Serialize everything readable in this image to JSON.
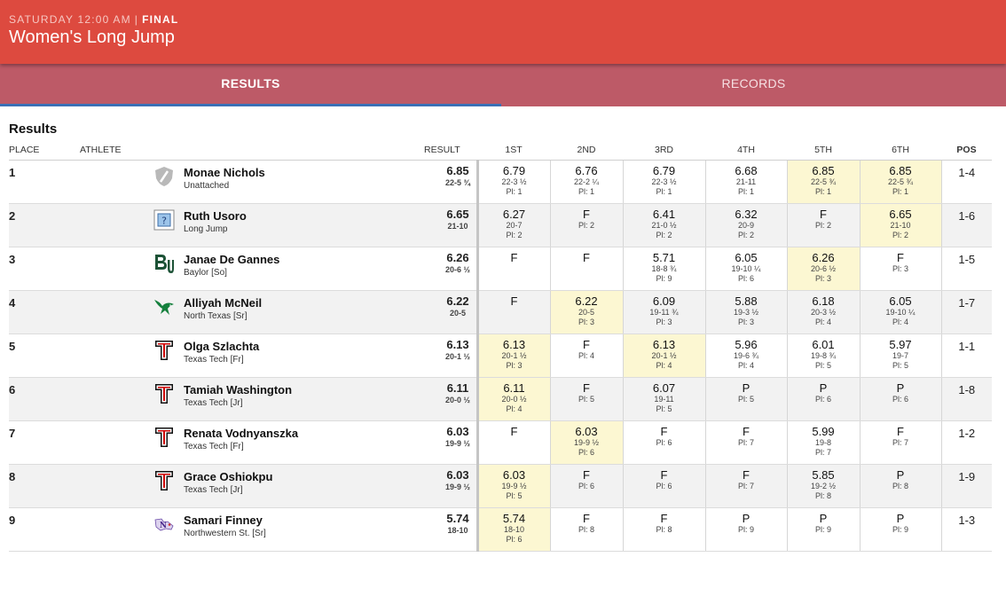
{
  "header": {
    "day_time": "SATURDAY 12:00 AM",
    "separator": "|",
    "status": "FINAL",
    "title": "Women's Long Jump"
  },
  "tabs": [
    {
      "label": "RESULTS",
      "active": true
    },
    {
      "label": "RECORDS",
      "active": false
    }
  ],
  "section_title": "Results",
  "columns": {
    "place": "PLACE",
    "athlete": "ATHLETE",
    "result": "RESULT",
    "attempts": [
      "1ST",
      "2ND",
      "3RD",
      "4TH",
      "5TH",
      "6TH"
    ],
    "pos": "POS"
  },
  "colors": {
    "header_bg": "#dd4a3f",
    "tabs_bg": "#bd5a67",
    "active_indicator": "#3a6fb5",
    "best_mark_highlight": "#fcf7d2"
  },
  "rows": [
    {
      "place": "1",
      "name": "Monae Nichols",
      "team": "Unattached",
      "logo": "unattached-shield-icon",
      "result": "6.85",
      "result_imperial": "22-5 ¾",
      "pos": "1-4",
      "attempts": [
        {
          "mark": "6.79",
          "imperial": "22-3 ½",
          "pl": "Pl: 1",
          "best": false
        },
        {
          "mark": "6.76",
          "imperial": "22-2 ¼",
          "pl": "Pl: 1",
          "best": false
        },
        {
          "mark": "6.79",
          "imperial": "22-3 ½",
          "pl": "Pl: 1",
          "best": false
        },
        {
          "mark": "6.68",
          "imperial": "21-11",
          "pl": "Pl: 1",
          "best": false
        },
        {
          "mark": "6.85",
          "imperial": "22-5 ¾",
          "pl": "Pl: 1",
          "best": true
        },
        {
          "mark": "6.85",
          "imperial": "22-5 ¾",
          "pl": "Pl: 1",
          "best": true
        }
      ]
    },
    {
      "place": "2",
      "name": "Ruth Usoro",
      "team": "Long Jump",
      "logo": "unknown-team-icon",
      "result": "6.65",
      "result_imperial": "21-10",
      "pos": "1-6",
      "attempts": [
        {
          "mark": "6.27",
          "imperial": "20-7",
          "pl": "Pl: 2",
          "best": false
        },
        {
          "mark": "F",
          "imperial": "",
          "pl": "Pl: 2",
          "best": false
        },
        {
          "mark": "6.41",
          "imperial": "21-0 ½",
          "pl": "Pl: 2",
          "best": false
        },
        {
          "mark": "6.32",
          "imperial": "20-9",
          "pl": "Pl: 2",
          "best": false
        },
        {
          "mark": "F",
          "imperial": "",
          "pl": "Pl: 2",
          "best": false
        },
        {
          "mark": "6.65",
          "imperial": "21-10",
          "pl": "Pl: 2",
          "best": true
        }
      ]
    },
    {
      "place": "3",
      "name": "Janae De Gannes",
      "team": "Baylor [So]",
      "logo": "baylor-bu-icon",
      "result": "6.26",
      "result_imperial": "20-6 ½",
      "pos": "1-5",
      "attempts": [
        {
          "mark": "F",
          "imperial": "",
          "pl": "",
          "best": false
        },
        {
          "mark": "F",
          "imperial": "",
          "pl": "",
          "best": false
        },
        {
          "mark": "5.71",
          "imperial": "18-8 ¾",
          "pl": "Pl: 9",
          "best": false
        },
        {
          "mark": "6.05",
          "imperial": "19-10 ¼",
          "pl": "Pl: 6",
          "best": false
        },
        {
          "mark": "6.26",
          "imperial": "20-6 ½",
          "pl": "Pl: 3",
          "best": true
        },
        {
          "mark": "F",
          "imperial": "",
          "pl": "Pl: 3",
          "best": false
        }
      ]
    },
    {
      "place": "4",
      "name": "Alliyah McNeil",
      "team": "North Texas [Sr]",
      "logo": "north-texas-eagle-icon",
      "result": "6.22",
      "result_imperial": "20-5",
      "pos": "1-7",
      "attempts": [
        {
          "mark": "F",
          "imperial": "",
          "pl": "",
          "best": false
        },
        {
          "mark": "6.22",
          "imperial": "20-5",
          "pl": "Pl: 3",
          "best": true
        },
        {
          "mark": "6.09",
          "imperial": "19-11 ¾",
          "pl": "Pl: 3",
          "best": false
        },
        {
          "mark": "5.88",
          "imperial": "19-3 ½",
          "pl": "Pl: 3",
          "best": false
        },
        {
          "mark": "6.18",
          "imperial": "20-3 ½",
          "pl": "Pl: 4",
          "best": false
        },
        {
          "mark": "6.05",
          "imperial": "19-10 ¼",
          "pl": "Pl: 4",
          "best": false
        }
      ]
    },
    {
      "place": "5",
      "name": "Olga Szlachta",
      "team": "Texas Tech [Fr]",
      "logo": "texas-tech-double-t-icon",
      "result": "6.13",
      "result_imperial": "20-1 ½",
      "pos": "1-1",
      "attempts": [
        {
          "mark": "6.13",
          "imperial": "20-1 ½",
          "pl": "Pl: 3",
          "best": true
        },
        {
          "mark": "F",
          "imperial": "",
          "pl": "Pl: 4",
          "best": false
        },
        {
          "mark": "6.13",
          "imperial": "20-1 ½",
          "pl": "Pl: 4",
          "best": true
        },
        {
          "mark": "5.96",
          "imperial": "19-6 ¾",
          "pl": "Pl: 4",
          "best": false
        },
        {
          "mark": "6.01",
          "imperial": "19-8 ¾",
          "pl": "Pl: 5",
          "best": false
        },
        {
          "mark": "5.97",
          "imperial": "19-7",
          "pl": "Pl: 5",
          "best": false
        }
      ]
    },
    {
      "place": "6",
      "name": "Tamiah Washington",
      "team": "Texas Tech [Jr]",
      "logo": "texas-tech-double-t-icon",
      "result": "6.11",
      "result_imperial": "20-0 ½",
      "pos": "1-8",
      "attempts": [
        {
          "mark": "6.11",
          "imperial": "20-0 ½",
          "pl": "Pl: 4",
          "best": true
        },
        {
          "mark": "F",
          "imperial": "",
          "pl": "Pl: 5",
          "best": false
        },
        {
          "mark": "6.07",
          "imperial": "19-11",
          "pl": "Pl: 5",
          "best": false
        },
        {
          "mark": "P",
          "imperial": "",
          "pl": "Pl: 5",
          "best": false
        },
        {
          "mark": "P",
          "imperial": "",
          "pl": "Pl: 6",
          "best": false
        },
        {
          "mark": "P",
          "imperial": "",
          "pl": "Pl: 6",
          "best": false
        }
      ]
    },
    {
      "place": "7",
      "name": "Renata Vodnyanszka",
      "team": "Texas Tech [Fr]",
      "logo": "texas-tech-double-t-icon",
      "result": "6.03",
      "result_imperial": "19-9 ½",
      "pos": "1-2",
      "attempts": [
        {
          "mark": "F",
          "imperial": "",
          "pl": "",
          "best": false
        },
        {
          "mark": "6.03",
          "imperial": "19-9 ½",
          "pl": "Pl: 6",
          "best": true
        },
        {
          "mark": "F",
          "imperial": "",
          "pl": "Pl: 6",
          "best": false
        },
        {
          "mark": "F",
          "imperial": "",
          "pl": "Pl: 7",
          "best": false
        },
        {
          "mark": "5.99",
          "imperial": "19-8",
          "pl": "Pl: 7",
          "best": false
        },
        {
          "mark": "F",
          "imperial": "",
          "pl": "Pl: 7",
          "best": false
        }
      ]
    },
    {
      "place": "8",
      "name": "Grace Oshiokpu",
      "team": "Texas Tech [Jr]",
      "logo": "texas-tech-double-t-icon",
      "result": "6.03",
      "result_imperial": "19-9 ½",
      "pos": "1-9",
      "attempts": [
        {
          "mark": "6.03",
          "imperial": "19-9 ½",
          "pl": "Pl: 5",
          "best": true
        },
        {
          "mark": "F",
          "imperial": "",
          "pl": "Pl: 6",
          "best": false
        },
        {
          "mark": "F",
          "imperial": "",
          "pl": "Pl: 6",
          "best": false
        },
        {
          "mark": "F",
          "imperial": "",
          "pl": "Pl: 7",
          "best": false
        },
        {
          "mark": "5.85",
          "imperial": "19-2 ½",
          "pl": "Pl: 8",
          "best": false
        },
        {
          "mark": "P",
          "imperial": "",
          "pl": "Pl: 8",
          "best": false
        }
      ]
    },
    {
      "place": "9",
      "name": "Samari Finney",
      "team": "Northwestern St. [Sr]",
      "logo": "northwestern-state-icon",
      "result": "5.74",
      "result_imperial": "18-10",
      "pos": "1-3",
      "attempts": [
        {
          "mark": "5.74",
          "imperial": "18-10",
          "pl": "Pl: 6",
          "best": true
        },
        {
          "mark": "F",
          "imperial": "",
          "pl": "Pl: 8",
          "best": false
        },
        {
          "mark": "F",
          "imperial": "",
          "pl": "Pl: 8",
          "best": false
        },
        {
          "mark": "P",
          "imperial": "",
          "pl": "Pl: 9",
          "best": false
        },
        {
          "mark": "P",
          "imperial": "",
          "pl": "Pl: 9",
          "best": false
        },
        {
          "mark": "P",
          "imperial": "",
          "pl": "Pl: 9",
          "best": false
        }
      ]
    }
  ]
}
